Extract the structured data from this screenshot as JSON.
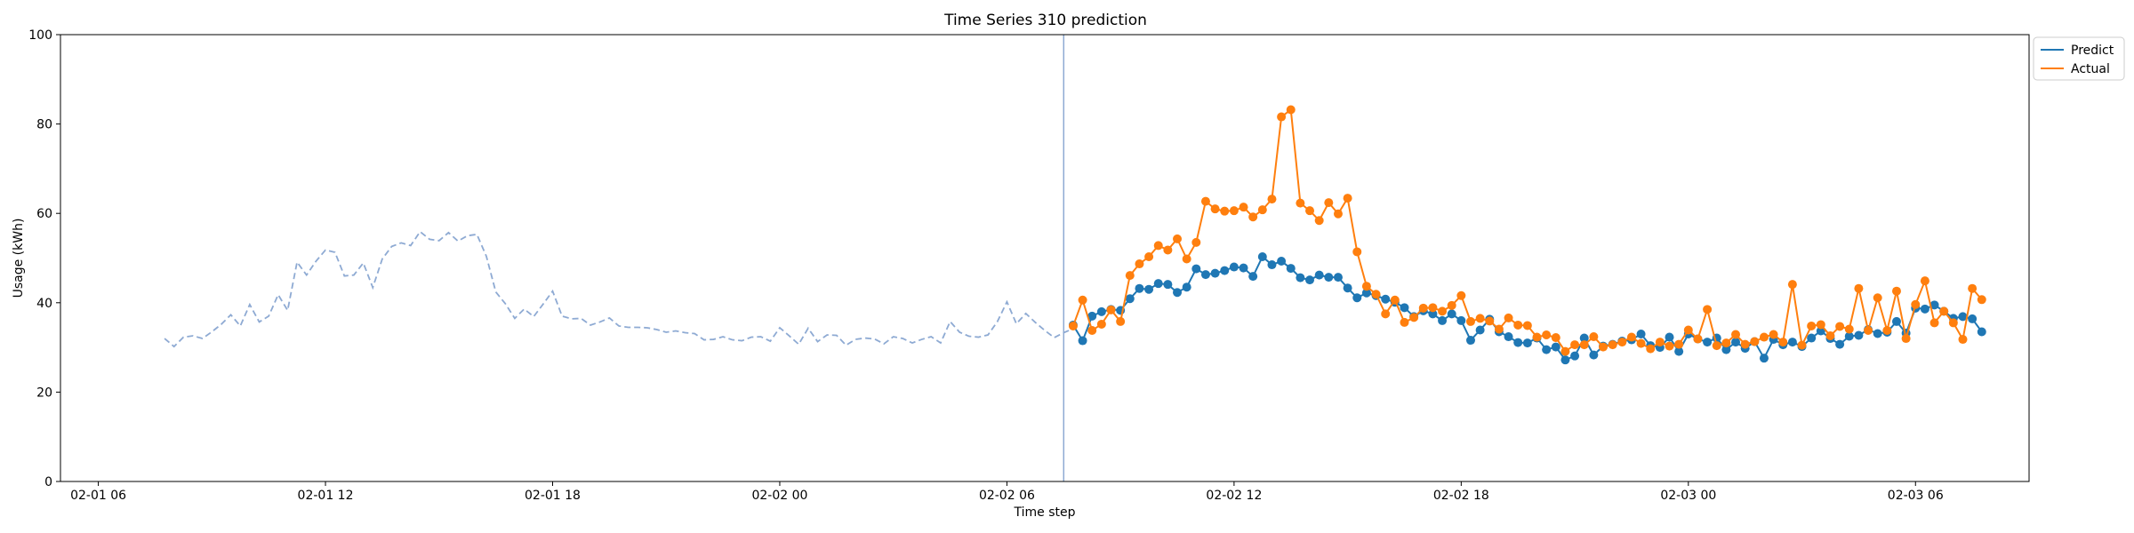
{
  "chart_data": {
    "type": "line",
    "title": "Time Series 310 prediction",
    "xlabel": "Time step",
    "ylabel": "Usage (kWh)",
    "ylim": [
      0,
      100
    ],
    "xlim": [
      "2024-02-01T05:00",
      "2024-02-03T09:00"
    ],
    "yticks": [
      0,
      20,
      40,
      60,
      80,
      100
    ],
    "xticks": [
      {
        "t": "2024-02-01T06:00",
        "label": "02-01 06"
      },
      {
        "t": "2024-02-01T12:00",
        "label": "02-01 12"
      },
      {
        "t": "2024-02-01T18:00",
        "label": "02-01 18"
      },
      {
        "t": "2024-02-02T00:00",
        "label": "02-02 00"
      },
      {
        "t": "2024-02-02T06:00",
        "label": "02-02 06"
      },
      {
        "t": "2024-02-02T12:00",
        "label": "02-02 12"
      },
      {
        "t": "2024-02-02T18:00",
        "label": "02-02 18"
      },
      {
        "t": "2024-02-03T00:00",
        "label": "02-03 00"
      },
      {
        "t": "2024-02-03T06:00",
        "label": "02-03 06"
      }
    ],
    "grid": false,
    "legend_position": "outside-top-right",
    "forecast_start": "2024-02-02T07:30",
    "colors": {
      "predict": "#1f77b4",
      "actual": "#ff7f0e",
      "history": "#8eaad3",
      "divider": "#8eaad3"
    },
    "history": {
      "start": "2024-02-01T07:45",
      "step_minutes": 15,
      "style": "dashed",
      "values": [
        32.0,
        30.2,
        32.3,
        32.6,
        32.0,
        33.5,
        35.2,
        37.3,
        34.8,
        39.6,
        35.7,
        37.0,
        41.8,
        38.3,
        49.1,
        46.2,
        49.3,
        51.8,
        51.3,
        46.0,
        46.2,
        48.9,
        43.4,
        49.8,
        52.6,
        53.4,
        52.8,
        55.9,
        54.2,
        53.9,
        55.7,
        53.8,
        55.0,
        55.3,
        50.4,
        42.4,
        39.8,
        36.5,
        38.6,
        36.9,
        39.7,
        42.6,
        37.0,
        36.4,
        36.5,
        35.0,
        35.7,
        36.6,
        34.8,
        34.5,
        34.5,
        34.4,
        34.0,
        33.4,
        33.7,
        33.3,
        33.1,
        31.7,
        31.8,
        32.4,
        31.7,
        31.5,
        32.3,
        32.4,
        31.4,
        34.4,
        32.6,
        30.7,
        34.3,
        31.3,
        32.8,
        32.7,
        30.5,
        31.8,
        32.1,
        31.9,
        30.8,
        32.4,
        32.0,
        31.0,
        31.8,
        32.4,
        31.0,
        35.8,
        33.4,
        32.5,
        32.3,
        32.8,
        35.8,
        40.2,
        35.3,
        37.6,
        35.6,
        33.8,
        32.2,
        33.3,
        34.2
      ]
    },
    "series": [
      {
        "name": "Predict",
        "start": "2024-02-02T07:45",
        "step_minutes": 15,
        "values": [
          35.0,
          31.5,
          37.0,
          38.0,
          38.5,
          38.3,
          40.9,
          43.2,
          43.0,
          44.3,
          44.1,
          42.3,
          43.5,
          47.6,
          46.3,
          46.6,
          47.2,
          48.0,
          47.8,
          45.9,
          50.3,
          48.5,
          49.3,
          47.7,
          45.6,
          45.1,
          46.2,
          45.7,
          45.7,
          43.3,
          41.1,
          42.2,
          41.6,
          40.8,
          40.1,
          38.9,
          36.9,
          38.2,
          37.5,
          36.0,
          37.5,
          36.0,
          31.6,
          33.9,
          36.3,
          33.5,
          32.4,
          31.1,
          31.0,
          32.1,
          29.5,
          30.1,
          27.2,
          28.1,
          32.1,
          28.3,
          30.3,
          30.7,
          31.4,
          31.7,
          33.0,
          30.4,
          30.0,
          32.3,
          29.1,
          33.0,
          31.9,
          31.2,
          32.1,
          29.5,
          31.2,
          29.8,
          31.3,
          27.6,
          31.8,
          30.6,
          31.2,
          30.2,
          32.1,
          33.7,
          32.0,
          30.7,
          32.5,
          32.7,
          34.0,
          33.1,
          33.4,
          35.8,
          33.2,
          38.8,
          38.6,
          39.5,
          38.1,
          36.5,
          36.9,
          36.4,
          33.5
        ]
      },
      {
        "name": "Actual",
        "start": "2024-02-02T07:45",
        "step_minutes": 15,
        "values": [
          34.8,
          40.6,
          33.8,
          35.2,
          38.4,
          35.8,
          46.1,
          48.7,
          50.3,
          52.8,
          51.8,
          54.3,
          49.8,
          53.5,
          62.7,
          61.0,
          60.5,
          60.6,
          61.4,
          59.2,
          60.8,
          63.2,
          81.6,
          83.2,
          62.3,
          60.6,
          58.4,
          62.4,
          59.9,
          63.4,
          51.4,
          43.7,
          41.9,
          37.5,
          40.6,
          35.6,
          36.7,
          38.8,
          38.9,
          38.1,
          39.4,
          41.6,
          35.8,
          36.5,
          35.9,
          34.1,
          36.6,
          35.0,
          34.9,
          32.3,
          32.8,
          32.2,
          29.1,
          30.6,
          30.6,
          32.4,
          30.1,
          30.6,
          31.2,
          32.3,
          30.9,
          29.7,
          31.2,
          30.3,
          30.7,
          33.9,
          31.9,
          38.5,
          30.4,
          31.0,
          32.9,
          30.7,
          31.3,
          32.3,
          32.9,
          31.2,
          44.1,
          30.5,
          34.8,
          35.1,
          32.6,
          34.7,
          34.1,
          43.2,
          33.8,
          41.1,
          33.8,
          42.6,
          32.0,
          39.6,
          44.9,
          35.5,
          38.1,
          35.5,
          31.8,
          43.2,
          40.7
        ]
      }
    ]
  }
}
